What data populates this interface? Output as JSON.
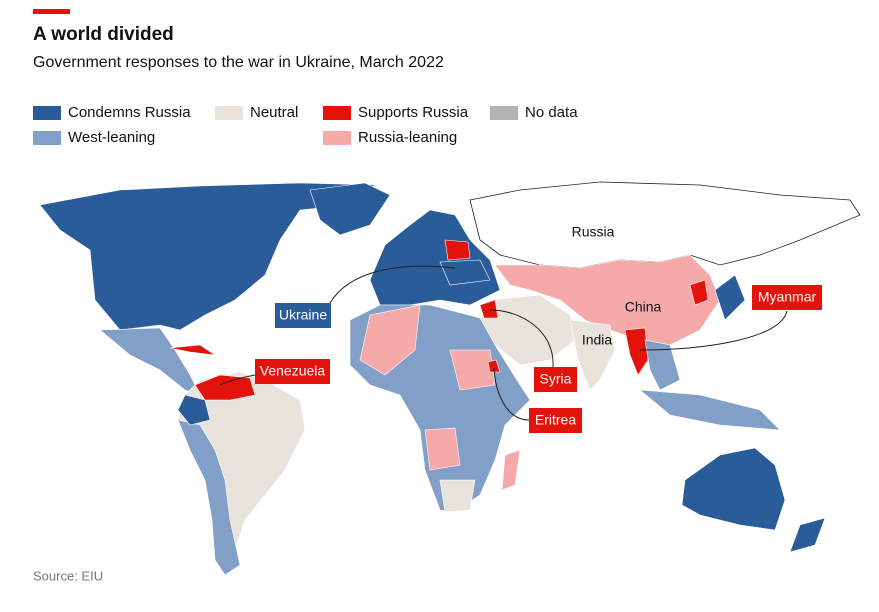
{
  "header": {
    "title": "A world divided",
    "subtitle": "Government responses to the war in Ukraine, March 2022"
  },
  "legend": [
    {
      "label": "Condemns Russia",
      "color": "#2a5c9a"
    },
    {
      "label": "Neutral",
      "color": "#e8e4dc"
    },
    {
      "label": "Supports Russia",
      "color": "#e3120b"
    },
    {
      "label": "No data",
      "color": "#b3b3b3"
    },
    {
      "label": "West-leaning",
      "color": "#819fc7"
    },
    {
      "label": "Russia-leaning",
      "color": "#f5aaa9"
    }
  ],
  "map_labels": [
    "Russia",
    "China",
    "India"
  ],
  "callouts": [
    {
      "label": "Ukraine",
      "color": "#2a5c9a"
    },
    {
      "label": "Venezuela",
      "color": "#e3120b"
    },
    {
      "label": "Syria",
      "color": "#e3120b"
    },
    {
      "label": "Eritrea",
      "color": "#e3120b"
    },
    {
      "label": "Myanmar",
      "color": "#e3120b"
    }
  ],
  "source": "Source: EIU"
}
